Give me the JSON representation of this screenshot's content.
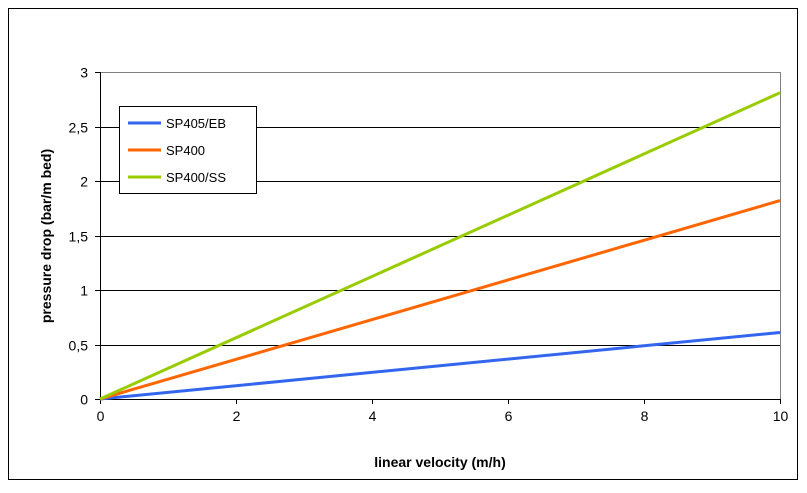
{
  "chart_data": {
    "type": "line",
    "xlabel": "linear velocity (m/h)",
    "ylabel": "pressure drop (bar/m bed)",
    "xlim": [
      0,
      10
    ],
    "ylim": [
      0,
      3
    ],
    "x_ticks": [
      "0",
      "2",
      "4",
      "6",
      "8",
      "10"
    ],
    "y_ticks": [
      "0",
      "0,5",
      "1",
      "1,5",
      "2",
      "2,5",
      "3"
    ],
    "grid": "horizontal",
    "legend_position": "top-left",
    "series": [
      {
        "name": "SP405/EB",
        "color": "#3366ee",
        "x": [
          0,
          10
        ],
        "y": [
          0,
          0.61
        ]
      },
      {
        "name": "SP400",
        "color": "#ff6600",
        "x": [
          0,
          10
        ],
        "y": [
          0,
          1.82
        ]
      },
      {
        "name": "SP400/SS",
        "color": "#99cc00",
        "x": [
          0,
          10
        ],
        "y": [
          0,
          2.81
        ]
      }
    ]
  }
}
